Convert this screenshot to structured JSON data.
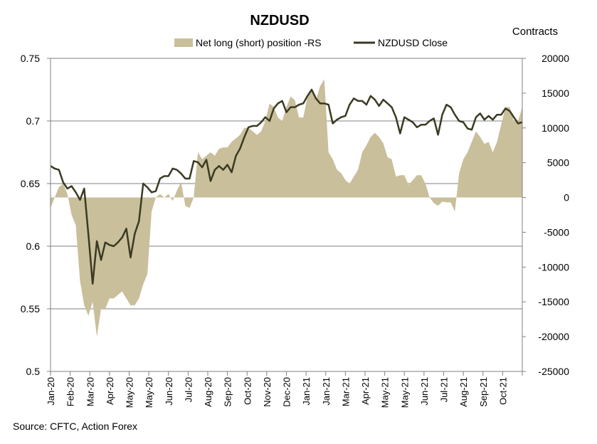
{
  "chart_data": {
    "type": "line",
    "title": "NZDUSD",
    "source": "Source: CFTC, Action Forex",
    "left_axis": {
      "ylim": [
        0.5,
        0.75
      ],
      "ticks": [
        "0.75",
        "0.7",
        "0.65",
        "0.6",
        "0.55",
        "0.5"
      ],
      "tick_values": [
        0.75,
        0.7,
        0.65,
        0.6,
        0.55,
        0.5
      ]
    },
    "right_axis": {
      "title": "Contracts",
      "ylim": [
        -25000,
        20000
      ],
      "ticks": [
        "20000",
        "15000",
        "10000",
        "5000",
        "0",
        "-5000",
        "-10000",
        "-15000",
        "-20000",
        "-25000"
      ],
      "tick_values": [
        20000,
        15000,
        10000,
        5000,
        0,
        -5000,
        -10000,
        -15000,
        -20000,
        -25000
      ]
    },
    "x_tick_labels": [
      "Jan-20",
      "Feb-20",
      "Mar-20",
      "Apr-20",
      "May-20",
      "May-20",
      "Jun-20",
      "Jul-20",
      "Aug-20",
      "Sep-20",
      "Oct-20",
      "Nov-20",
      "Dec-20",
      "Jan-21",
      "Jan-21",
      "Mar-21",
      "Apr-21",
      "May-21",
      "May-21",
      "Jun-21",
      "Jul-21",
      "Aug-21",
      "Sep-21",
      "Oct-21"
    ],
    "grid": "horizontal",
    "legend": "top",
    "colors": {
      "area": "#c9bf9b",
      "line": "#3b3a22",
      "grid": "#808080"
    },
    "series": [
      {
        "name": "Net long (short) position -RS",
        "axis": "right",
        "kind": "area",
        "values": [
          -1500,
          0,
          1500,
          2000,
          500,
          -2500,
          -4000,
          -12000,
          -15500,
          -17000,
          -15000,
          -20000,
          -16000,
          -16000,
          -14500,
          -14500,
          -14000,
          -13500,
          -14500,
          -15500,
          -15500,
          -14500,
          -12500,
          -11000,
          -2000,
          0,
          500,
          0,
          500,
          -500,
          1000,
          2200,
          -1200,
          -1500,
          0,
          6500,
          5500,
          6000,
          6500,
          6000,
          7000,
          7200,
          7200,
          8000,
          8500,
          9000,
          10000,
          10000,
          9500,
          9000,
          9500,
          11000,
          13500,
          13000,
          11500,
          11000,
          13000,
          14500,
          14000,
          11500,
          11500,
          14500,
          15500,
          14000,
          16000,
          17000,
          6500,
          5500,
          4000,
          3500,
          2500,
          2000,
          3000,
          4000,
          6500,
          7500,
          8700,
          9300,
          8700,
          7800,
          5800,
          5500,
          3000,
          3200,
          3200,
          1800,
          2500,
          3200,
          3200,
          2000,
          0,
          -800,
          -1200,
          -600,
          -700,
          -700,
          -2000,
          3500,
          5500,
          6500,
          8000,
          9500,
          8700,
          7700,
          8000,
          6500,
          8000,
          10500,
          13000,
          13000,
          11000,
          11000,
          13000
        ],
        "x_range": [
          0,
          113
        ]
      },
      {
        "name": "NZDUSD Close",
        "axis": "left",
        "kind": "line",
        "values": [
          0.664,
          0.662,
          0.661,
          0.651,
          0.646,
          0.648,
          0.643,
          0.637,
          0.646,
          0.609,
          0.57,
          0.604,
          0.589,
          0.603,
          0.601,
          0.6,
          0.603,
          0.607,
          0.614,
          0.591,
          0.61,
          0.62,
          0.65,
          0.647,
          0.643,
          0.644,
          0.654,
          0.656,
          0.656,
          0.662,
          0.661,
          0.658,
          0.654,
          0.654,
          0.668,
          0.667,
          0.663,
          0.669,
          0.652,
          0.661,
          0.664,
          0.661,
          0.665,
          0.659,
          0.672,
          0.678,
          0.687,
          0.695,
          0.696,
          0.696,
          0.699,
          0.703,
          0.7,
          0.71,
          0.714,
          0.716,
          0.707,
          0.711,
          0.711,
          0.713,
          0.714,
          0.72,
          0.725,
          0.718,
          0.714,
          0.714,
          0.713,
          0.698,
          0.701,
          0.703,
          0.704,
          0.713,
          0.718,
          0.716,
          0.716,
          0.713,
          0.72,
          0.717,
          0.712,
          0.717,
          0.714,
          0.711,
          0.703,
          0.69,
          0.703,
          0.701,
          0.699,
          0.695,
          0.697,
          0.697,
          0.7,
          0.702,
          0.689,
          0.705,
          0.713,
          0.711,
          0.705,
          0.7,
          0.699,
          0.694,
          0.693,
          0.703,
          0.706,
          0.701,
          0.704,
          0.701,
          0.705,
          0.705,
          0.71,
          0.708,
          0.703,
          0.698,
          0.699
        ],
        "x_range": [
          0,
          113
        ]
      }
    ]
  }
}
